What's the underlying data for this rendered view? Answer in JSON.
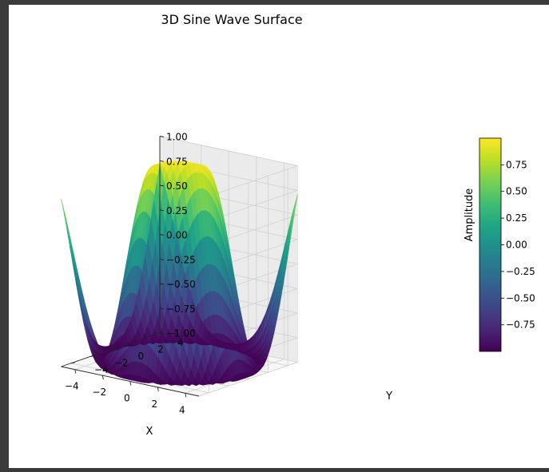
{
  "chart_data": {
    "type": "surface3d",
    "function": "sin(sqrt(x^2 + y^2))",
    "title": "3D Sine Wave Surface",
    "xlabel": "X",
    "ylabel": "Y",
    "zlabel": "Amplitude",
    "x_range": [
      -5,
      5
    ],
    "y_range": [
      -5,
      5
    ],
    "z_range": [
      -1,
      1
    ],
    "x_ticks": [
      "−4",
      "−2",
      "0",
      "2",
      "4"
    ],
    "x_tick_values": [
      -4,
      -2,
      0,
      2,
      4
    ],
    "y_ticks": [
      "−4",
      "−2",
      "0",
      "2",
      "4"
    ],
    "y_tick_values": [
      -4,
      -2,
      0,
      2,
      4
    ],
    "z_ticks": [
      "−1.00",
      "−0.75",
      "−0.50",
      "−0.25",
      "0.00",
      "0.25",
      "0.50",
      "0.75",
      "1.00"
    ],
    "z_tick_values": [
      -1,
      -0.75,
      -0.5,
      -0.25,
      0,
      0.25,
      0.5,
      0.75,
      1
    ],
    "colormap": "viridis",
    "colorbar_ticks": [
      "−0.75",
      "−0.50",
      "−0.25",
      "0.00",
      "0.25",
      "0.50",
      "0.75"
    ],
    "colorbar_tick_values": [
      -0.75,
      -0.5,
      -0.25,
      0,
      0.25,
      0.5,
      0.75
    ],
    "colorbar_range": [
      -0.9996,
      0.9996
    ],
    "grid": true
  }
}
